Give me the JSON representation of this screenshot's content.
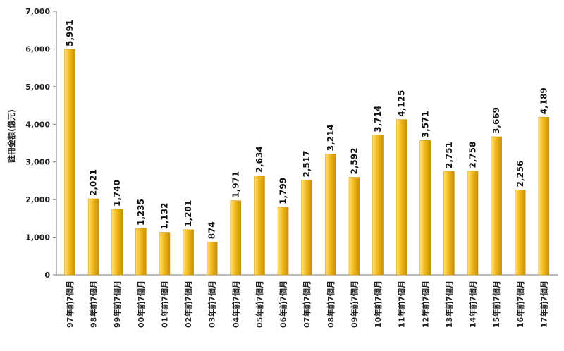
{
  "chart_data": {
    "type": "bar",
    "title": "",
    "xlabel": "",
    "ylabel": "註冊金額(億元)",
    "ylim": [
      0,
      7000
    ],
    "yticks": [
      0,
      1000,
      2000,
      3000,
      4000,
      5000,
      6000,
      7000
    ],
    "ytick_labels": [
      "0",
      "1,000",
      "2,000",
      "3,000",
      "4,000",
      "5,000",
      "6,000",
      "7,000"
    ],
    "grid": false,
    "legend": "none",
    "categories": [
      "97年前7個月",
      "98年前7個月",
      "99年前7個月",
      "00年前7個月",
      "01年前7個月",
      "02年前7個月",
      "03年前7個月",
      "04年前7個月",
      "05年前7個月",
      "06年前7個月",
      "07年前7個月",
      "08年前7個月",
      "09年前7個月",
      "10年前7個月",
      "11年前7個月",
      "12年前7個月",
      "13年前7個月",
      "14年前7個月",
      "15年前7個月",
      "16年前7個月",
      "17年前7個月"
    ],
    "values": [
      5991,
      2021,
      1740,
      1235,
      1132,
      1201,
      874,
      1971,
      2634,
      1799,
      2517,
      3214,
      2592,
      3714,
      4125,
      3571,
      2751,
      2758,
      3669,
      2256,
      4189
    ],
    "value_labels": [
      "5,991",
      "2,021",
      "1,740",
      "1,235",
      "1,132",
      "1,201",
      "874",
      "1,971",
      "2,634",
      "1,799",
      "2,517",
      "3,214",
      "2,592",
      "3,714",
      "4,125",
      "3,571",
      "2,751",
      "2,758",
      "3,669",
      "2,256",
      "4,189"
    ],
    "colors": {
      "bar": "#f2b91e",
      "bar_light": "#ffe27a",
      "bar_dark": "#c98f00",
      "axis": "#777777"
    }
  }
}
